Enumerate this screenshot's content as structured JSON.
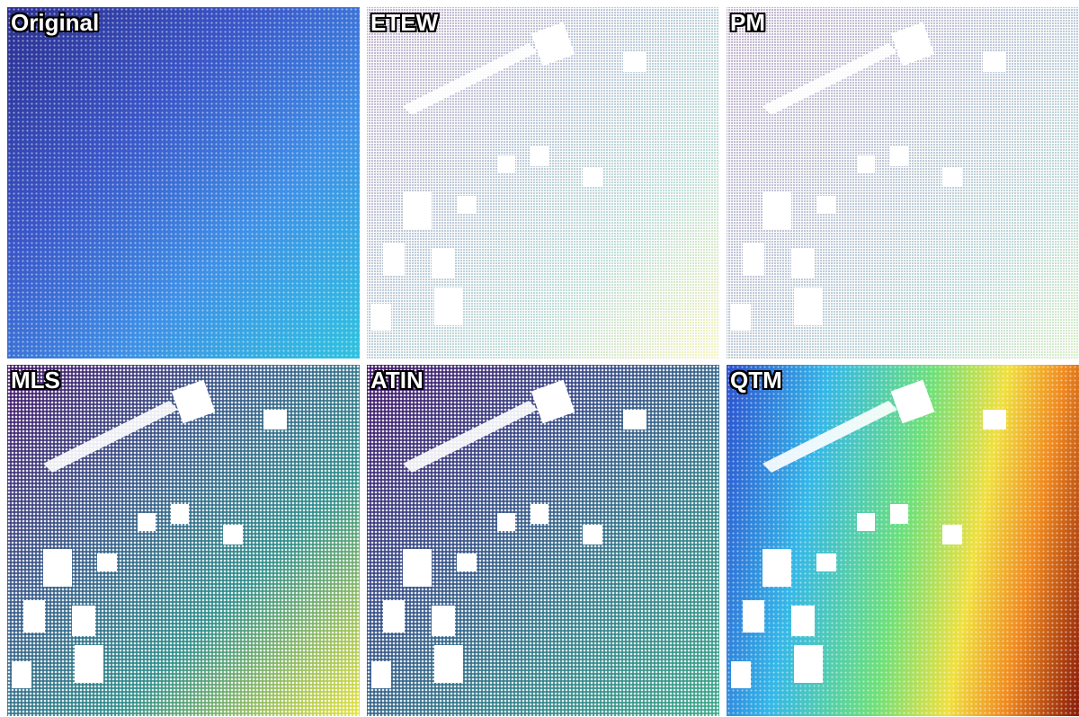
{
  "panels": [
    {
      "label": "Original"
    },
    {
      "label": "ETEW"
    },
    {
      "label": "PM"
    },
    {
      "label": "MLS"
    },
    {
      "label": "ATIN"
    },
    {
      "label": "QTM"
    }
  ]
}
